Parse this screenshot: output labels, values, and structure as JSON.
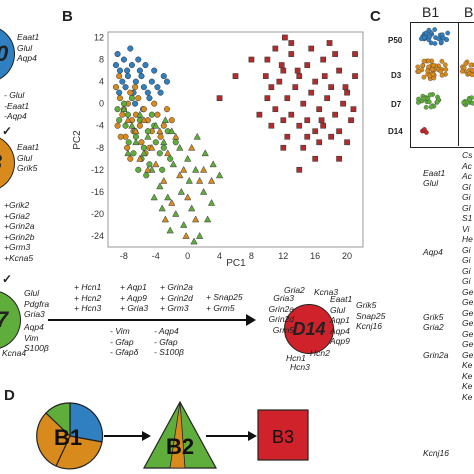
{
  "panels": {
    "B": "B",
    "C": "C",
    "D": "D"
  },
  "left_column": {
    "p50": {
      "label": "50",
      "genes": [
        "Eaat1",
        "Glul",
        "Aqp4"
      ]
    },
    "p50_changes": [
      "- Glul",
      "-Eaat1",
      "-Aqp4"
    ],
    "d3": {
      "label": "3",
      "genes": [
        "Eaat1",
        "Glul",
        "Grik5"
      ]
    },
    "d3_changes": [
      "+Grik2",
      "+Gria2",
      "+Grin2a",
      "+Grin2b",
      "+Grm3",
      "+Kcna5"
    ]
  },
  "flow": {
    "d7": {
      "label": "7",
      "genes_right": [
        "Glul",
        "Pdgfra",
        "Gria3"
      ],
      "genes_bottom": [
        "Aqp4",
        "Vim",
        "S100β"
      ],
      "genes_left": [
        "Kcna4"
      ]
    },
    "plus_col1": [
      "+ Hcn1",
      "+ Hcn2",
      "+ Hcn3"
    ],
    "plus_col2": [
      "+ Aqp1",
      "+ Aqp9",
      "+ Gria3"
    ],
    "plus_col3": [
      "+ Grin2a",
      "+ Grin2d",
      "+ Grm3"
    ],
    "plus_col4": [
      "+ Snap25",
      "+ Grm5"
    ],
    "minus_col1": [
      "- Vim",
      "- Gfap",
      "- Gfapδ"
    ],
    "minus_col2": [
      "- Aqp4",
      "- Gfap",
      "- S100β"
    ],
    "d14": {
      "label": "D14",
      "genes_top": [
        "Gria2",
        "Kcna3"
      ],
      "genes_left": [
        "Gria3",
        "Grin2a",
        "Grin2d",
        "Grm5"
      ],
      "genes_right": [
        "Eaat1",
        "Glul",
        "Aqp1",
        "Aqp4",
        "Aqp9"
      ],
      "genes_bottom": [
        "Hcn1",
        "Hcn2",
        "Hcn3"
      ]
    },
    "d14_extra": [
      "Grik5",
      "Snap25",
      "Kcnj16"
    ]
  },
  "panel_c": {
    "header_b1": "B1",
    "header_b2": "B",
    "rows": [
      "P50",
      "D3",
      "D7",
      "D14"
    ],
    "gene_labels": [
      "Eaat1",
      "Glul",
      "Aqp4",
      "Grik5",
      "Gria2",
      "Grin2a",
      "Kcnj16"
    ],
    "right_stubs": [
      "Cs",
      "Ac",
      "Ac",
      "Gl",
      "Gi",
      "Gl",
      "S1",
      "Vi",
      "He",
      "Gi",
      "Gi",
      "Gi",
      "Gi",
      "Ge",
      "Ge",
      "Ge",
      "Ge",
      "Ge",
      "Ge",
      "Ge",
      "Ke",
      "Ke",
      "Ke",
      "Ke"
    ]
  },
  "panel_d": {
    "b1": "B1",
    "b2": "B2",
    "b3": "B3"
  },
  "colors": {
    "blue": "#2f7fc1",
    "orange": "#d98a1c",
    "green": "#5fae3c",
    "red": "#d0222a",
    "darkred": "#b52a2a"
  },
  "chart_data": {
    "type": "scatter",
    "xlabel": "PC1",
    "ylabel": "PC2",
    "xlim": [
      -10,
      22
    ],
    "ylim": [
      -26,
      13
    ],
    "xticks": [
      -8,
      -4,
      0,
      4,
      8,
      12,
      16,
      20
    ],
    "yticks": [
      12,
      8,
      4,
      0,
      -4,
      -8,
      -12,
      -16,
      -20,
      -24
    ],
    "series": [
      {
        "marker": "circle",
        "color": "#2f7fc1",
        "points": [
          [
            -8.5,
            6
          ],
          [
            -8,
            8
          ],
          [
            -7.5,
            5
          ],
          [
            -7,
            7
          ],
          [
            -6.5,
            4
          ],
          [
            -6,
            6
          ],
          [
            -5.5,
            3
          ],
          [
            -8.8,
            9
          ],
          [
            -7.8,
            3
          ],
          [
            -6.8,
            2
          ],
          [
            -5.8,
            5
          ],
          [
            -5,
            2
          ],
          [
            -4.5,
            4
          ],
          [
            -7.2,
            10
          ],
          [
            -8.2,
            4
          ],
          [
            -6.2,
            8
          ],
          [
            -4.8,
            1
          ],
          [
            -3.8,
            3
          ],
          [
            -3,
            5
          ],
          [
            -9,
            7
          ],
          [
            -8.6,
            2
          ],
          [
            -7.6,
            6
          ],
          [
            -5.3,
            7
          ],
          [
            -4.2,
            6
          ],
          [
            -3.4,
            2
          ],
          [
            -2.6,
            4
          ],
          [
            -6.6,
            0
          ],
          [
            -5.6,
            -1
          ]
        ]
      },
      {
        "marker": "circle",
        "color": "#d98a1c",
        "points": [
          [
            -8.5,
            1
          ],
          [
            -8,
            -1
          ],
          [
            -7.5,
            0
          ],
          [
            -7,
            -3
          ],
          [
            -6.5,
            -2
          ],
          [
            -6,
            -4
          ],
          [
            -5.5,
            -1
          ],
          [
            -8.8,
            -4
          ],
          [
            -7.8,
            -6
          ],
          [
            -6.8,
            -5
          ],
          [
            -5.8,
            -7
          ],
          [
            -5,
            -3
          ],
          [
            -4.5,
            -5
          ],
          [
            -7.2,
            2
          ],
          [
            -8.2,
            -2
          ],
          [
            -6.2,
            1
          ],
          [
            -4.8,
            -8
          ],
          [
            -3.8,
            -2
          ],
          [
            -3,
            -4
          ],
          [
            -9,
            3
          ],
          [
            -8.6,
            5
          ],
          [
            -7.6,
            -8
          ],
          [
            -5.3,
            -9
          ],
          [
            -4.2,
            0
          ],
          [
            -3.4,
            -6
          ],
          [
            -2.6,
            -1
          ],
          [
            -2,
            -3
          ],
          [
            -6.6,
            3
          ],
          [
            -8.4,
            -6
          ],
          [
            -7.2,
            -10
          ]
        ]
      },
      {
        "marker": "circle",
        "color": "#5fae3c",
        "points": [
          [
            -8,
            0
          ],
          [
            -7.5,
            -2
          ],
          [
            -7,
            1
          ],
          [
            -6.5,
            -6
          ],
          [
            -6,
            -3
          ],
          [
            -5.5,
            -8
          ],
          [
            -5,
            -5
          ],
          [
            -4.5,
            -2
          ],
          [
            -8.6,
            -3
          ],
          [
            -7.8,
            -4
          ],
          [
            -6.8,
            -9
          ],
          [
            -5.8,
            -10
          ],
          [
            -4.8,
            -11
          ],
          [
            -4,
            -7
          ],
          [
            -3.5,
            -9
          ],
          [
            -3,
            -8
          ],
          [
            -2.5,
            -5
          ],
          [
            -6.2,
            -12
          ],
          [
            -7.4,
            -7
          ],
          [
            -5.2,
            -13
          ],
          [
            -4.2,
            -4
          ],
          [
            -3.2,
            -12
          ],
          [
            -2.2,
            -10
          ],
          [
            -1.5,
            -7
          ],
          [
            -8.8,
            -1
          ],
          [
            -6.6,
            -5
          ]
        ]
      },
      {
        "marker": "triangle",
        "color": "#5fae3c",
        "points": [
          [
            -8,
            -1
          ],
          [
            -7,
            -4
          ],
          [
            -6,
            -2
          ],
          [
            -5,
            -6
          ],
          [
            -4,
            -4
          ],
          [
            -3,
            -7
          ],
          [
            -2,
            -5
          ],
          [
            -1,
            -8
          ],
          [
            0,
            -10
          ],
          [
            1,
            -12
          ],
          [
            2,
            -16
          ],
          [
            3,
            -18
          ],
          [
            -4.5,
            -12
          ],
          [
            -3.5,
            -15
          ],
          [
            -2.5,
            -17
          ],
          [
            -1.5,
            -20
          ],
          [
            -0.5,
            -22
          ],
          [
            0.5,
            -19
          ],
          [
            1.5,
            -24
          ],
          [
            2.5,
            -21
          ],
          [
            -5.5,
            -9
          ],
          [
            -6.5,
            -7
          ],
          [
            -2.8,
            -3
          ],
          [
            -1.8,
            -11
          ],
          [
            0.2,
            -14
          ],
          [
            -3.2,
            -19
          ],
          [
            -4.2,
            -17
          ],
          [
            -0.8,
            -16
          ],
          [
            1.2,
            -6
          ],
          [
            2.2,
            -9
          ],
          [
            3.2,
            -11
          ],
          [
            -7.5,
            -9
          ],
          [
            0.8,
            -25
          ],
          [
            -2.2,
            -23
          ],
          [
            4,
            -13
          ]
        ]
      },
      {
        "marker": "triangle",
        "color": "#d98a1c",
        "points": [
          [
            -7.5,
            -3
          ],
          [
            -6.5,
            -5
          ],
          [
            -5.5,
            -3
          ],
          [
            -4.5,
            -8
          ],
          [
            -3.5,
            -5
          ],
          [
            -2.5,
            -9
          ],
          [
            -1.5,
            -6
          ],
          [
            -0.5,
            -12
          ],
          [
            0.5,
            -8
          ],
          [
            1.5,
            -14
          ],
          [
            -4,
            -11
          ],
          [
            -3,
            -14
          ],
          [
            -2,
            -18
          ],
          [
            -1,
            -13
          ],
          [
            0,
            -17
          ],
          [
            1,
            -21
          ],
          [
            2,
            -12
          ],
          [
            -5,
            -12
          ],
          [
            -6,
            -10
          ],
          [
            3,
            -14
          ],
          [
            -0.2,
            -24
          ],
          [
            -2.8,
            -21
          ]
        ]
      },
      {
        "marker": "square",
        "color": "#b52a2a",
        "points": [
          [
            10,
            8
          ],
          [
            11,
            10
          ],
          [
            12,
            6
          ],
          [
            13,
            9
          ],
          [
            14,
            5
          ],
          [
            15,
            7
          ],
          [
            16,
            4
          ],
          [
            17,
            8
          ],
          [
            18,
            3
          ],
          [
            19,
            6
          ],
          [
            20,
            2
          ],
          [
            21,
            5
          ],
          [
            10.5,
            3
          ],
          [
            11.5,
            4
          ],
          [
            12.5,
            1
          ],
          [
            13.5,
            3
          ],
          [
            14.5,
            0
          ],
          [
            15.5,
            2
          ],
          [
            16.5,
            -1
          ],
          [
            17.5,
            1
          ],
          [
            18.5,
            -2
          ],
          [
            19.5,
            0
          ],
          [
            20.5,
            -3
          ],
          [
            11,
            -1
          ],
          [
            12,
            -3
          ],
          [
            13,
            -2
          ],
          [
            14,
            -4
          ],
          [
            15,
            -3
          ],
          [
            16,
            -5
          ],
          [
            17,
            -4
          ],
          [
            18,
            -6
          ],
          [
            19,
            -5
          ],
          [
            20,
            -7
          ],
          [
            12.5,
            -6
          ],
          [
            14.5,
            -8
          ],
          [
            16.5,
            -7
          ],
          [
            10,
            1
          ],
          [
            21,
            9
          ],
          [
            13,
            11
          ],
          [
            15.5,
            10
          ],
          [
            18.5,
            9
          ],
          [
            9.8,
            5
          ],
          [
            11.8,
            7
          ],
          [
            17.8,
            11
          ],
          [
            20.8,
            -1
          ],
          [
            19,
            -10
          ],
          [
            14,
            -12
          ],
          [
            16,
            -10
          ],
          [
            12,
            -8
          ],
          [
            10.5,
            -4
          ],
          [
            8,
            8
          ],
          [
            9,
            -2
          ],
          [
            6,
            5
          ],
          [
            4,
            1
          ],
          [
            13.8,
            6
          ],
          [
            17.2,
            5
          ],
          [
            15,
            -6
          ],
          [
            19.8,
            3
          ],
          [
            12.2,
            12
          ],
          [
            16.8,
            -3
          ]
        ]
      }
    ]
  }
}
